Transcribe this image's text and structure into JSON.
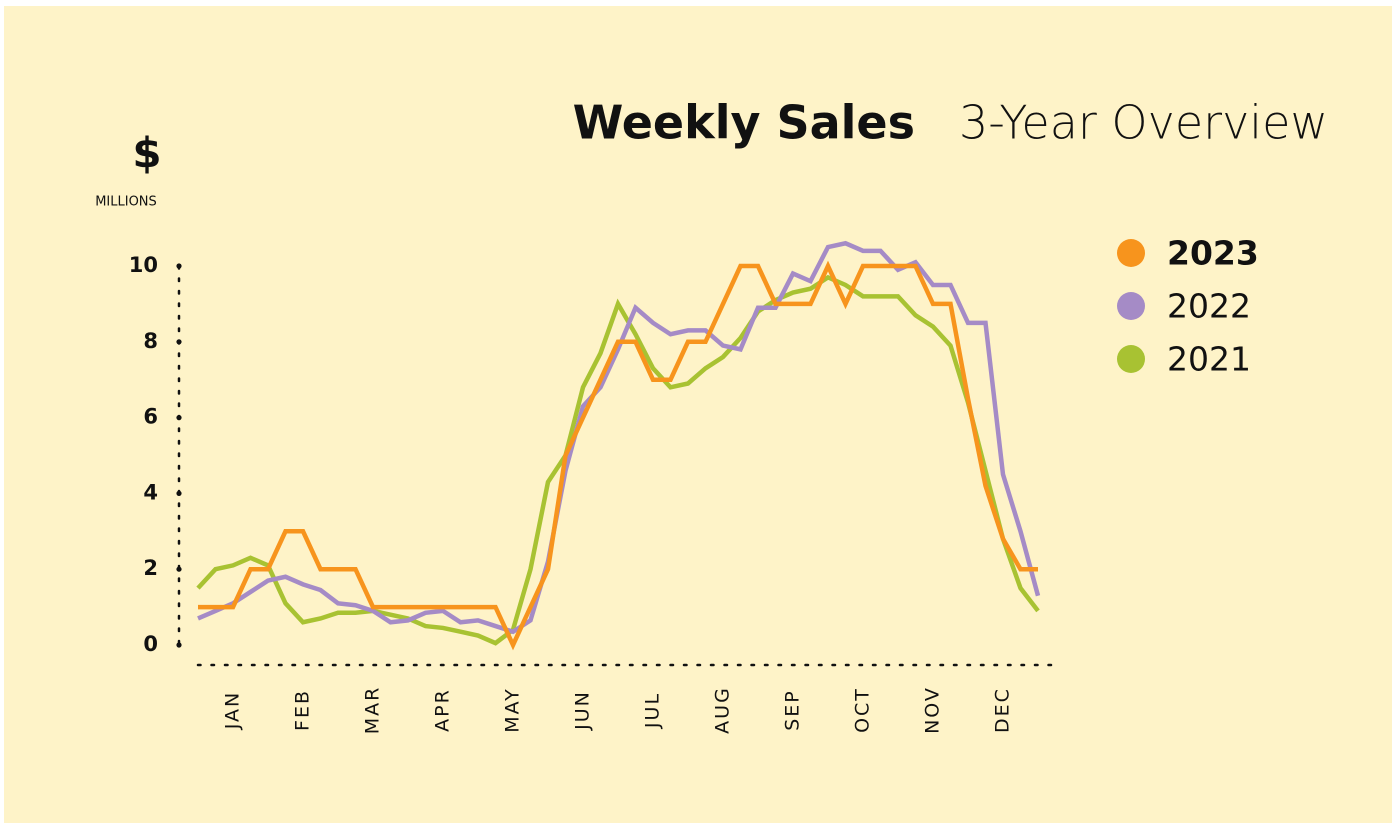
{
  "chart_data": {
    "type": "line",
    "title": "Weekly Sales",
    "subtitle": "3-Year Overview",
    "y_axis_label": "$",
    "y_axis_unit": "MILLIONS",
    "categories": [
      null,
      null,
      "JAN",
      null,
      null,
      null,
      "FEB",
      null,
      null,
      null,
      "MAR",
      null,
      null,
      null,
      "APR",
      null,
      null,
      null,
      "MAY",
      null,
      null,
      null,
      "JUN",
      null,
      null,
      null,
      "JUL",
      null,
      null,
      null,
      "AUG",
      null,
      null,
      null,
      "SEP",
      null,
      null,
      null,
      "OCT",
      null,
      null,
      null,
      "NOV",
      null,
      null,
      null,
      "DEC",
      null,
      null
    ],
    "series": [
      {
        "name": "2023",
        "color": "#f7941d",
        "values": [
          1,
          1,
          1,
          2,
          2,
          3,
          3,
          2,
          2,
          2,
          1,
          1,
          1,
          1,
          1,
          1,
          1,
          1,
          0,
          1,
          2,
          5,
          6,
          7,
          8,
          8,
          7,
          7,
          8,
          8,
          9,
          10,
          10,
          9,
          9,
          9,
          10,
          9,
          10,
          10,
          10,
          10,
          9,
          9,
          6.5,
          4.2,
          2.8,
          2,
          2
        ]
      },
      {
        "name": "2022",
        "color": "#a58bc6",
        "values": [
          0.7,
          0.9,
          1.1,
          1.4,
          1.7,
          1.8,
          1.6,
          1.45,
          1.1,
          1.05,
          0.9,
          0.6,
          0.65,
          0.85,
          0.9,
          0.6,
          0.65,
          0.5,
          0.35,
          0.65,
          2.2,
          4.6,
          6.3,
          6.8,
          7.8,
          8.9,
          8.5,
          8.2,
          8.3,
          8.3,
          7.9,
          7.8,
          8.9,
          8.9,
          9.8,
          9.6,
          10.5,
          10.6,
          10.4,
          10.4,
          9.9,
          10.1,
          9.5,
          9.5,
          8.5,
          8.5,
          4.5,
          3,
          1.3
        ]
      },
      {
        "name": "2021",
        "color": "#a8c232",
        "values": [
          1.5,
          2,
          2.1,
          2.3,
          2.1,
          1.1,
          0.6,
          0.7,
          0.85,
          0.85,
          0.9,
          0.8,
          0.7,
          0.5,
          0.45,
          0.35,
          0.25,
          0.05,
          0.4,
          2,
          4.3,
          5,
          6.8,
          7.7,
          9,
          8.2,
          7.3,
          6.8,
          6.9,
          7.3,
          7.6,
          8.1,
          8.8,
          9.1,
          9.3,
          9.4,
          9.7,
          9.5,
          9.2,
          9.2,
          9.2,
          8.7,
          8.4,
          7.9,
          6.4,
          4.6,
          2.8,
          1.5,
          0.9
        ]
      }
    ],
    "ylim": [
      0,
      10
    ],
    "yticks": [
      0,
      2,
      4,
      6,
      8,
      10
    ],
    "legend": "right"
  }
}
